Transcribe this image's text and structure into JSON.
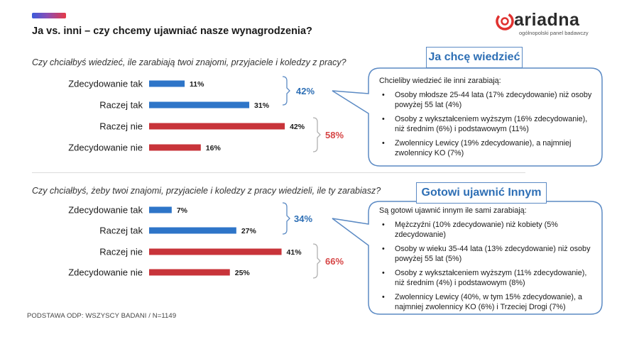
{
  "header": {
    "title": "Ja vs. inni – czy chcemy ujawniać nasze wynagrodzenia?",
    "logo_name": "ariadna",
    "logo_tagline": "ogólnopolski panel badawczy",
    "accent_colors": [
      "#3b5bdb",
      "#e63946"
    ]
  },
  "colors": {
    "positive": "#2e75c8",
    "negative": "#c8343a",
    "negative_text": "#d64545",
    "positive_text": "#2e6fb5"
  },
  "chart_data": [
    {
      "type": "bar",
      "title": "Czy chciałbyś wiedzieć, ile zarabiają twoi znajomi, przyjaciele i koledzy z pracy?",
      "categories": [
        "Zdecydowanie tak",
        "Raczej tak",
        "Raczej nie",
        "Zdecydowanie nie"
      ],
      "values": [
        11,
        31,
        42,
        16
      ],
      "value_labels": [
        "11%",
        "31%",
        "42%",
        "16%"
      ],
      "bar_colors": [
        "#2e75c8",
        "#2e75c8",
        "#c8343a",
        "#c8343a"
      ],
      "groups": [
        {
          "label": "42%",
          "color": "#2e6fb5"
        },
        {
          "label": "58%",
          "color": "#d64545"
        }
      ]
    },
    {
      "type": "bar",
      "title": "Czy chciałbyś, żeby twoi znajomi, przyjaciele i koledzy z pracy wiedzieli, ile ty zarabiasz?",
      "categories": [
        "Zdecydowanie tak",
        "Raczej tak",
        "Raczej nie",
        "Zdecydowanie nie"
      ],
      "values": [
        7,
        27,
        41,
        25
      ],
      "value_labels": [
        "7%",
        "27%",
        "41%",
        "25%"
      ],
      "bar_colors": [
        "#2e75c8",
        "#2e75c8",
        "#c8343a",
        "#c8343a"
      ],
      "groups": [
        {
          "label": "34%",
          "color": "#2e6fb5"
        },
        {
          "label": "66%",
          "color": "#d64545"
        }
      ]
    }
  ],
  "callouts": [
    {
      "tag": "Ja chcę wiedzieć",
      "heading": "Chcieliby wiedzieć ile inni zarabiają:",
      "items": [
        "Osoby młodsze 25-44 lata (17% zdecydowanie) niż osoby powyżej 55 lat (4%)",
        "Osoby z wykształceniem wyższym (16% zdecydowanie), niż średnim (6%) i podstawowym (11%)",
        "Zwolennicy Lewicy (19% zdecydowanie), a najmniej zwolennicy KO (7%)"
      ]
    },
    {
      "tag": "Gotowi ujawnić Innym",
      "heading": "Są gotowi ujawnić innym ile sami zarabiają:",
      "items": [
        "Mężczyźni (10% zdecydowanie) niż kobiety (5% zdecydowanie)",
        "Osoby w wieku 35-44 lata (13% zdecydowanie) niż osoby powyżej 55 lat (5%)",
        "Osoby z wykształceniem wyższym (11% zdecydowanie), niż średnim (4%) i podstawowym (8%)",
        "Zwolennicy Lewicy (40%, w tym 15% zdecydowanie), a najmniej zwolennicy KO (6%) i Trzeciej Drogi (7%)"
      ]
    }
  ],
  "footer": "PODSTAWA ODP: WSZYSCY BADANI / N=1149"
}
